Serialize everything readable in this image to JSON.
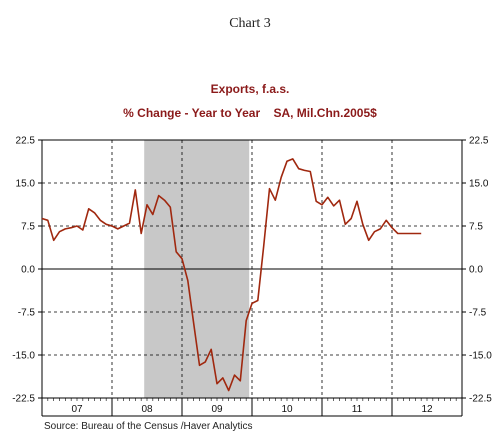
{
  "page_title": "Chart 3",
  "chart_data": {
    "type": "line",
    "title": "Exports, f.a.s.",
    "subtitle": "% Change - Year to Year    SA, Mil.Chn.2005$",
    "source": "Source:  Bureau of the Census /Haver Analytics",
    "ylim": [
      -22.5,
      22.5
    ],
    "yticks": [
      "22.5",
      "15.0",
      "7.5",
      "0.0",
      "-7.5",
      "-15.0",
      "-22.5"
    ],
    "ytick_values": [
      22.5,
      15.0,
      7.5,
      0.0,
      -7.5,
      -15.0,
      -22.5
    ],
    "xlim": [
      2006.5,
      2012.5
    ],
    "xticks": [
      {
        "label": "07",
        "value": 2007.0
      },
      {
        "label": "08",
        "value": 2008.0
      },
      {
        "label": "09",
        "value": 2009.0
      },
      {
        "label": "10",
        "value": 2010.0
      },
      {
        "label": "11",
        "value": 2011.0
      },
      {
        "label": "12",
        "value": 2012.0
      }
    ],
    "year_boundaries": [
      2007.5,
      2008.5,
      2009.5,
      2010.5,
      2011.5
    ],
    "grid": true,
    "recession": {
      "start": 2007.96,
      "end": 2009.46
    },
    "colors": {
      "line": "#a0280f",
      "recession": "#c8c8c8",
      "title": "#8b1a1a"
    },
    "series": [
      {
        "x": [
          2006.5,
          2006.583,
          2006.667,
          2006.75,
          2006.833,
          2006.917,
          2007.0,
          2007.083,
          2007.167,
          2007.25,
          2007.333,
          2007.417,
          2007.5,
          2007.583,
          2007.667,
          2007.75,
          2007.833,
          2007.917,
          2008.0,
          2008.083,
          2008.167,
          2008.25,
          2008.333,
          2008.417,
          2008.5,
          2008.583,
          2008.667,
          2008.75,
          2008.833,
          2008.917,
          2009.0,
          2009.083,
          2009.167,
          2009.25,
          2009.333,
          2009.417,
          2009.5,
          2009.583,
          2009.667,
          2009.75,
          2009.833,
          2009.917,
          2010.0,
          2010.083,
          2010.167,
          2010.25,
          2010.333,
          2010.417,
          2010.5,
          2010.583,
          2010.667,
          2010.75,
          2010.833,
          2010.917,
          2011.0,
          2011.083,
          2011.167,
          2011.25,
          2011.333,
          2011.417,
          2011.5,
          2011.583,
          2011.667,
          2011.75,
          2011.833,
          2011.917
        ],
        "y": [
          8.8,
          8.5,
          5.0,
          6.5,
          7.0,
          7.2,
          7.5,
          6.8,
          10.5,
          9.8,
          8.5,
          7.8,
          7.5,
          7.0,
          7.5,
          8.0,
          13.8,
          6.2,
          11.2,
          9.5,
          12.8,
          12.0,
          10.8,
          3.0,
          1.8,
          -2.0,
          -9.5,
          -16.8,
          -16.2,
          -14.0,
          -20.0,
          -19.0,
          -21.2,
          -18.5,
          -19.5,
          -9.0,
          -6.0,
          -5.5,
          4.0,
          14.0,
          12.0,
          16.0,
          18.8,
          19.2,
          17.5,
          17.2,
          17.0,
          11.8,
          11.2,
          12.5,
          11.0,
          12.0,
          7.8,
          8.8,
          11.8,
          7.8,
          5.0,
          6.5,
          7.0,
          8.5,
          7.2,
          6.2,
          6.2,
          6.2,
          6.2,
          6.2
        ]
      }
    ]
  }
}
